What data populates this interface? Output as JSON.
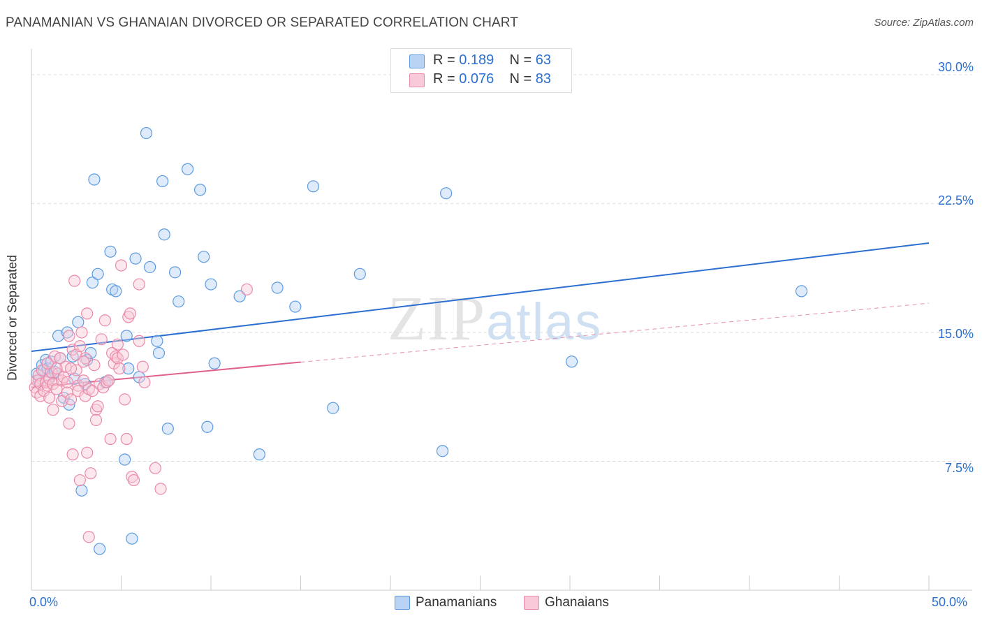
{
  "title": "PANAMANIAN VS GHANAIAN DIVORCED OR SEPARATED CORRELATION CHART",
  "source": "Source: ZipAtlas.com",
  "watermark": {
    "zip": "ZIP",
    "atlas": "atlas"
  },
  "legend_top": [
    {
      "r_label": "R =",
      "r_value": "0.189",
      "n_label": "N =",
      "n_value": "63",
      "color": "#5b9be0",
      "fill": "#b9d3f4"
    },
    {
      "r_label": "R =",
      "r_value": "0.076",
      "n_label": "N =",
      "n_value": "83",
      "color": "#ea8aaa",
      "fill": "#f8c9d8"
    }
  ],
  "legend_bottom": [
    {
      "label": "Panamanians",
      "color": "#5b9be0",
      "fill": "#b9d3f4"
    },
    {
      "label": "Ghanaians",
      "color": "#ea8aaa",
      "fill": "#f8c9d8"
    }
  ],
  "chart_data": {
    "type": "scatter",
    "title": "PANAMANIAN VS GHANAIAN DIVORCED OR SEPARATED CORRELATION CHART",
    "xlabel": "",
    "ylabel": "Divorced or Separated",
    "xlim": [
      0,
      50
    ],
    "ylim": [
      0,
      31.5
    ],
    "x_tick_labels": [
      "0.0%",
      "50.0%"
    ],
    "y_ticks": [
      7.5,
      15.0,
      22.5,
      30.0
    ],
    "y_tick_labels": [
      "7.5%",
      "15.0%",
      "22.5%",
      "30.0%"
    ],
    "grid": true,
    "series": [
      {
        "name": "Panamanians",
        "color": "#5b9be0",
        "trend": {
          "x0": 0,
          "y0": 13.9,
          "x1": 50,
          "y1": 20.2,
          "dashed_from": null
        },
        "points": [
          [
            0.3,
            12.6
          ],
          [
            0.4,
            12.2
          ],
          [
            0.6,
            13.1
          ],
          [
            0.7,
            12.8
          ],
          [
            0.8,
            13.4
          ],
          [
            0.9,
            12.9
          ],
          [
            1.0,
            12.4
          ],
          [
            1.1,
            13.3
          ],
          [
            1.2,
            12.6
          ],
          [
            1.3,
            12.7
          ],
          [
            1.5,
            14.8
          ],
          [
            1.6,
            13.5
          ],
          [
            1.8,
            11.2
          ],
          [
            2.0,
            15.0
          ],
          [
            2.1,
            10.8
          ],
          [
            2.3,
            13.6
          ],
          [
            2.4,
            12.3
          ],
          [
            2.6,
            15.6
          ],
          [
            2.8,
            5.8
          ],
          [
            3.0,
            12.0
          ],
          [
            3.1,
            13.4
          ],
          [
            3.3,
            13.8
          ],
          [
            3.4,
            17.9
          ],
          [
            3.5,
            23.9
          ],
          [
            3.7,
            18.4
          ],
          [
            3.8,
            2.4
          ],
          [
            4.1,
            12.1
          ],
          [
            4.3,
            12.2
          ],
          [
            4.4,
            19.7
          ],
          [
            4.5,
            17.5
          ],
          [
            4.7,
            17.4
          ],
          [
            5.2,
            7.6
          ],
          [
            5.3,
            14.8
          ],
          [
            5.4,
            12.9
          ],
          [
            5.6,
            3.0
          ],
          [
            5.8,
            19.3
          ],
          [
            6.0,
            12.4
          ],
          [
            6.4,
            26.6
          ],
          [
            6.6,
            18.8
          ],
          [
            7.0,
            14.5
          ],
          [
            7.1,
            13.8
          ],
          [
            7.3,
            23.8
          ],
          [
            7.4,
            20.7
          ],
          [
            7.6,
            9.4
          ],
          [
            8.0,
            18.5
          ],
          [
            8.2,
            16.8
          ],
          [
            8.7,
            24.5
          ],
          [
            9.4,
            23.3
          ],
          [
            9.6,
            19.4
          ],
          [
            9.8,
            9.5
          ],
          [
            10.0,
            17.8
          ],
          [
            10.2,
            13.2
          ],
          [
            11.6,
            17.1
          ],
          [
            12.7,
            7.9
          ],
          [
            13.7,
            17.6
          ],
          [
            14.7,
            16.5
          ],
          [
            15.7,
            23.5
          ],
          [
            16.8,
            10.6
          ],
          [
            18.3,
            18.4
          ],
          [
            22.9,
            8.1
          ],
          [
            23.1,
            23.1
          ],
          [
            30.1,
            13.3
          ],
          [
            42.9,
            17.4
          ]
        ]
      },
      {
        "name": "Ghanaians",
        "color": "#ea8aaa",
        "trend": {
          "x0": 0,
          "y0": 11.8,
          "x1": 50,
          "y1": 16.7,
          "dashed_from": 15.0
        },
        "points": [
          [
            0.2,
            11.8
          ],
          [
            0.3,
            12.2
          ],
          [
            0.3,
            11.5
          ],
          [
            0.4,
            12.5
          ],
          [
            0.5,
            11.3
          ],
          [
            0.5,
            12.0
          ],
          [
            0.6,
            12.8
          ],
          [
            0.7,
            11.6
          ],
          [
            0.8,
            12.1
          ],
          [
            0.9,
            11.9
          ],
          [
            1.0,
            12.3
          ],
          [
            1.0,
            11.2
          ],
          [
            1.1,
            12.7
          ],
          [
            1.2,
            10.5
          ],
          [
            1.2,
            12.0
          ],
          [
            1.3,
            13.6
          ],
          [
            1.4,
            11.7
          ],
          [
            1.5,
            12.6
          ],
          [
            1.6,
            13.5
          ],
          [
            1.7,
            12.2
          ],
          [
            1.7,
            11.0
          ],
          [
            1.8,
            12.4
          ],
          [
            1.9,
            13.0
          ],
          [
            2.0,
            11.5
          ],
          [
            2.0,
            12.1
          ],
          [
            2.1,
            14.8
          ],
          [
            2.1,
            9.7
          ],
          [
            2.2,
            11.1
          ],
          [
            2.3,
            14.0
          ],
          [
            2.3,
            7.9
          ],
          [
            2.4,
            18.0
          ],
          [
            2.5,
            12.8
          ],
          [
            2.5,
            13.7
          ],
          [
            2.6,
            11.9
          ],
          [
            2.6,
            11.6
          ],
          [
            2.7,
            14.2
          ],
          [
            2.7,
            6.4
          ],
          [
            2.8,
            15.0
          ],
          [
            2.9,
            12.2
          ],
          [
            3.0,
            11.3
          ],
          [
            3.0,
            13.5
          ],
          [
            3.1,
            16.1
          ],
          [
            3.1,
            8.0
          ],
          [
            3.2,
            11.7
          ],
          [
            3.2,
            3.1
          ],
          [
            3.3,
            6.8
          ],
          [
            3.4,
            11.6
          ],
          [
            3.5,
            13.1
          ],
          [
            3.6,
            10.5
          ],
          [
            3.6,
            9.9
          ],
          [
            3.8,
            12.0
          ],
          [
            3.9,
            14.6
          ],
          [
            4.0,
            11.8
          ],
          [
            4.1,
            15.7
          ],
          [
            4.2,
            12.1
          ],
          [
            4.3,
            12.2
          ],
          [
            4.4,
            8.8
          ],
          [
            4.5,
            13.8
          ],
          [
            4.6,
            13.2
          ],
          [
            4.7,
            13.6
          ],
          [
            4.8,
            13.5
          ],
          [
            4.9,
            12.9
          ],
          [
            5.0,
            18.9
          ],
          [
            5.1,
            13.7
          ],
          [
            5.2,
            11.1
          ],
          [
            5.3,
            8.8
          ],
          [
            5.4,
            15.9
          ],
          [
            5.5,
            16.1
          ],
          [
            5.6,
            6.6
          ],
          [
            5.7,
            6.4
          ],
          [
            6.0,
            14.5
          ],
          [
            6.0,
            17.8
          ],
          [
            6.2,
            13.0
          ],
          [
            6.3,
            12.1
          ],
          [
            6.9,
            7.1
          ],
          [
            7.2,
            5.9
          ],
          [
            12.0,
            17.5
          ],
          [
            1.4,
            12.9
          ],
          [
            0.9,
            13.2
          ],
          [
            2.9,
            13.3
          ],
          [
            4.8,
            14.3
          ],
          [
            3.7,
            10.7
          ],
          [
            2.2,
            12.9
          ]
        ]
      }
    ]
  }
}
